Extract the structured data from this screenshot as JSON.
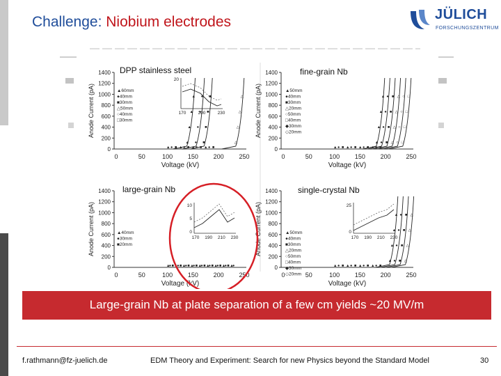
{
  "slide": {
    "title_prefix": "Challenge: ",
    "title_highlight": "Niobium electrodes",
    "logo": {
      "name": "JÜLICH",
      "subtitle": "FORSCHUNGSZENTRUM"
    },
    "banner": "Large-grain Nb at plate separation of a few cm yields ~20 MV/m",
    "footer": {
      "email": "f.rathmann@fz-juelich.de",
      "course": "EDM Theory and Experiment: Search for new Physics beyond the Standard Model",
      "page": "30"
    },
    "colors": {
      "title": "#1f4d9a",
      "accent": "#c0151b",
      "banner": "#c62a2f"
    }
  },
  "figure": {
    "ylabel": "Anode Current (pA)",
    "xlabel": "Voltage (kV)",
    "y_ticks": [
      "0",
      "200",
      "400",
      "600",
      "800",
      "1000",
      "1200",
      "1400"
    ],
    "x_ticks": [
      "0",
      "50",
      "100",
      "150",
      "200",
      "250"
    ],
    "panels": [
      {
        "label": "DPP stainless steel",
        "legend": [
          "60mm",
          "40mm",
          "30mm",
          "50mm",
          "40mm",
          "30mm"
        ],
        "inset_x": [
          "170",
          "200",
          "230"
        ],
        "inset_y": [
          "20"
        ]
      },
      {
        "label": "fine-grain Nb",
        "legend": [
          "50mm",
          "40mm",
          "30mm",
          "20mm",
          "50mm",
          "40mm",
          "30mm",
          "20mm"
        ]
      },
      {
        "label": "large-grain Nb",
        "legend": [
          "40mm",
          "30mm",
          "20mm"
        ],
        "inset_x": [
          "170",
          "190",
          "210",
          "230"
        ],
        "inset_y": [
          "10",
          "5",
          "0"
        ]
      },
      {
        "label": "single-crystal Nb",
        "legend": [
          "50mm",
          "40mm",
          "30mm",
          "20mm",
          "50mm",
          "40mm",
          "30mm",
          "20mm"
        ],
        "inset_x": [
          "170",
          "190",
          "210",
          "230"
        ],
        "inset_y": [
          "25",
          "0"
        ]
      }
    ]
  }
}
